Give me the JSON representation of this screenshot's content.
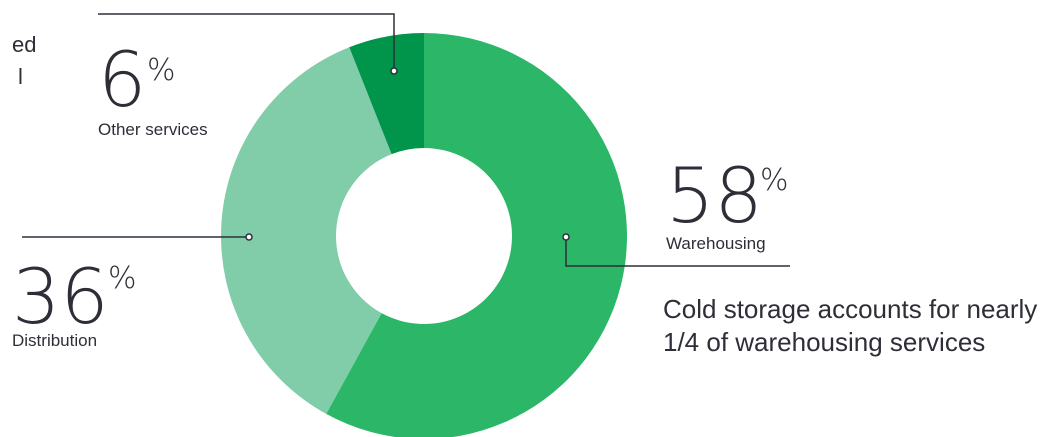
{
  "chart_data": {
    "type": "pie",
    "variant": "donut",
    "title": "",
    "slices": [
      {
        "label": "Warehousing",
        "value": 58,
        "color": "#2bb767"
      },
      {
        "label": "Distribution",
        "value": 36,
        "color": "#81cdaa"
      },
      {
        "label": "Other services",
        "value": 6,
        "color": "#00954a"
      }
    ],
    "value_suffix": "%",
    "legend": "none"
  },
  "partial_text": {
    "line1": "ed",
    "line2": "l"
  },
  "annotation": {
    "text": "Cold storage accounts for nearly 1/4 of warehousing services"
  }
}
